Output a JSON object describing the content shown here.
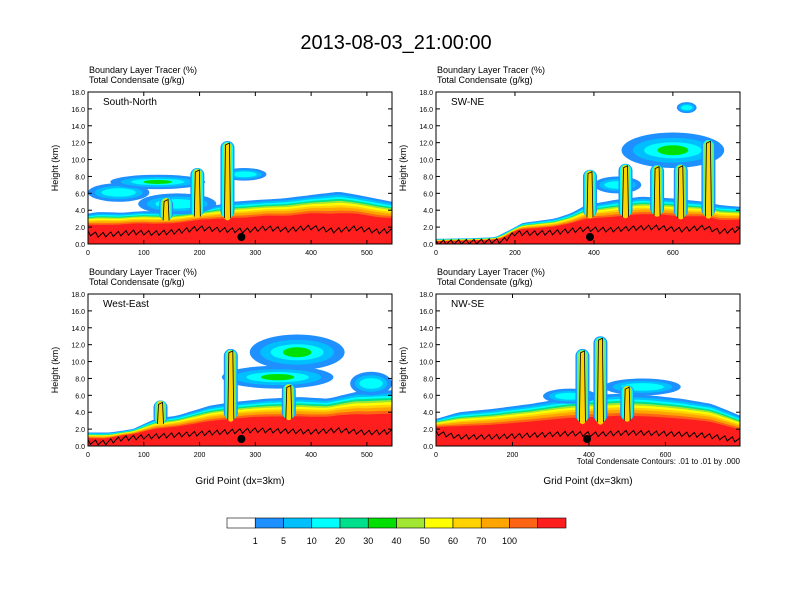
{
  "figure": {
    "title": "2013-08-03_21:00:00",
    "footnote": "Total Condensate Contours: .01 to .01 by .000"
  },
  "colorbar": {
    "labels": [
      "1",
      "5",
      "10",
      "20",
      "30",
      "40",
      "50",
      "60",
      "70",
      "100"
    ],
    "colors": [
      "#ffffff",
      "#1e90ff",
      "#00bfff",
      "#00ffff",
      "#00e08c",
      "#00e000",
      "#a0e632",
      "#ffff00",
      "#ffd200",
      "#ffa500",
      "#ff6414",
      "#ff1e1e"
    ]
  },
  "chart_data": [
    {
      "type": "heatmap",
      "panel_label": "South-North",
      "heading_line1": "Boundary Layer Tracer   (%)",
      "heading_line2": "Total Condensate   (g/kg)",
      "ylabel": "Height (km)",
      "xlabel": "",
      "xlim": [
        0,
        545
      ],
      "ylim": [
        0,
        18
      ],
      "xticks": [
        0,
        100,
        200,
        300,
        400,
        500
      ],
      "yticks": [
        "0.0",
        "2.0",
        "4.0",
        "6.0",
        "8.0",
        "10.0",
        "12.0",
        "14.0",
        "16.0",
        "18.0"
      ],
      "marker_x": 275,
      "top_profile": [
        [
          0,
          3.6
        ],
        [
          20,
          3.8
        ],
        [
          60,
          3.7
        ],
        [
          100,
          3.9
        ],
        [
          150,
          3.8
        ],
        [
          180,
          4.0
        ],
        [
          200,
          4.2
        ],
        [
          230,
          4.6
        ],
        [
          260,
          5.0
        ],
        [
          300,
          5.2
        ],
        [
          350,
          5.4
        ],
        [
          400,
          5.8
        ],
        [
          450,
          6.2
        ],
        [
          500,
          5.6
        ],
        [
          545,
          5.0
        ]
      ],
      "terrain": [
        [
          0,
          1.2
        ],
        [
          20,
          1.0
        ],
        [
          50,
          1.1
        ],
        [
          80,
          1.3
        ],
        [
          120,
          1.2
        ],
        [
          160,
          1.4
        ],
        [
          200,
          1.8
        ],
        [
          240,
          1.6
        ],
        [
          280,
          1.5
        ],
        [
          320,
          1.8
        ],
        [
          360,
          1.6
        ],
        [
          400,
          1.9
        ],
        [
          440,
          1.5
        ],
        [
          480,
          1.8
        ],
        [
          520,
          1.4
        ],
        [
          545,
          1.5
        ]
      ],
      "clouds": [
        {
          "x": [
            0,
            110
          ],
          "y": [
            5.0,
            7.2
          ]
        },
        {
          "x": [
            40,
            210
          ],
          "y": [
            6.5,
            8.2
          ]
        },
        {
          "x": [
            240,
            320
          ],
          "y": [
            7.5,
            9.0
          ]
        },
        {
          "x": [
            90,
            230
          ],
          "y": [
            3.5,
            6.0
          ]
        }
      ],
      "towers": [
        {
          "x": 250,
          "top": 12.2
        },
        {
          "x": 196,
          "top": 9.0
        },
        {
          "x": 140,
          "top": 5.5
        }
      ]
    },
    {
      "type": "heatmap",
      "panel_label": "SW-NE",
      "heading_line1": "Boundary Layer Tracer   (%)",
      "heading_line2": "Total Condensate   (g/kg)",
      "ylabel": "Height (km)",
      "xlabel": "",
      "xlim": [
        0,
        770
      ],
      "ylim": [
        0,
        18
      ],
      "xticks": [
        0,
        200,
        400,
        600
      ],
      "yticks": [
        "0.0",
        "2.0",
        "4.0",
        "6.0",
        "8.0",
        "10.0",
        "12.0",
        "14.0",
        "16.0",
        "18.0"
      ],
      "marker_x": 390,
      "top_profile": [
        [
          0,
          0.6
        ],
        [
          100,
          0.7
        ],
        [
          150,
          0.8
        ],
        [
          180,
          1.5
        ],
        [
          220,
          2.5
        ],
        [
          300,
          3.0
        ],
        [
          340,
          3.6
        ],
        [
          380,
          4.6
        ],
        [
          450,
          5.2
        ],
        [
          520,
          5.6
        ],
        [
          600,
          5.4
        ],
        [
          680,
          5.0
        ],
        [
          720,
          4.6
        ],
        [
          770,
          4.4
        ]
      ],
      "terrain": [
        [
          0,
          0.1
        ],
        [
          100,
          0.2
        ],
        [
          170,
          0.3
        ],
        [
          200,
          1.2
        ],
        [
          250,
          1.2
        ],
        [
          300,
          1.3
        ],
        [
          340,
          1.5
        ],
        [
          380,
          1.7
        ],
        [
          440,
          1.6
        ],
        [
          500,
          1.8
        ],
        [
          560,
          1.9
        ],
        [
          620,
          1.6
        ],
        [
          680,
          1.9
        ],
        [
          720,
          1.4
        ],
        [
          770,
          1.6
        ]
      ],
      "clouds": [
        {
          "x": [
            470,
            730
          ],
          "y": [
            9.0,
            13.2
          ]
        },
        {
          "x": [
            610,
            660
          ],
          "y": [
            15.5,
            16.8
          ]
        },
        {
          "x": [
            400,
            520
          ],
          "y": [
            6.0,
            8.0
          ]
        }
      ],
      "towers": [
        {
          "x": 390,
          "top": 8.8
        },
        {
          "x": 480,
          "top": 9.5
        },
        {
          "x": 560,
          "top": 9.4
        },
        {
          "x": 620,
          "top": 9.5
        },
        {
          "x": 690,
          "top": 12.4
        }
      ]
    },
    {
      "type": "heatmap",
      "panel_label": "West-East",
      "heading_line1": "Boundary Layer Tracer   (%)",
      "heading_line2": "Total Condensate   (g/kg)",
      "ylabel": "Height (km)",
      "xlabel": "Grid Point (dx=3km)",
      "xlim": [
        0,
        545
      ],
      "ylim": [
        0,
        18
      ],
      "xticks": [
        0,
        100,
        200,
        300,
        400,
        500
      ],
      "yticks": [
        "0.0",
        "2.0",
        "4.0",
        "6.0",
        "8.0",
        "10.0",
        "12.0",
        "14.0",
        "16.0",
        "18.0"
      ],
      "marker_x": 275,
      "top_profile": [
        [
          0,
          1.6
        ],
        [
          40,
          1.6
        ],
        [
          80,
          2.0
        ],
        [
          120,
          3.2
        ],
        [
          160,
          3.6
        ],
        [
          220,
          4.8
        ],
        [
          260,
          5.2
        ],
        [
          320,
          5.6
        ],
        [
          380,
          5.8
        ],
        [
          430,
          5.6
        ],
        [
          480,
          6.4
        ],
        [
          545,
          6.6
        ]
      ],
      "terrain": [
        [
          0,
          0.4
        ],
        [
          30,
          0.3
        ],
        [
          60,
          0.8
        ],
        [
          100,
          1.0
        ],
        [
          150,
          1.2
        ],
        [
          200,
          1.4
        ],
        [
          250,
          1.6
        ],
        [
          300,
          1.8
        ],
        [
          350,
          1.7
        ],
        [
          400,
          1.6
        ],
        [
          450,
          1.8
        ],
        [
          500,
          1.5
        ],
        [
          545,
          1.6
        ]
      ],
      "clouds": [
        {
          "x": [
            290,
            460
          ],
          "y": [
            9.0,
            13.2
          ]
        },
        {
          "x": [
            240,
            440
          ],
          "y": [
            6.8,
            9.5
          ]
        },
        {
          "x": [
            470,
            545
          ],
          "y": [
            6.0,
            8.8
          ]
        }
      ],
      "towers": [
        {
          "x": 256,
          "top": 11.5
        },
        {
          "x": 130,
          "top": 5.4
        },
        {
          "x": 360,
          "top": 7.4
        }
      ]
    },
    {
      "type": "heatmap",
      "panel_label": "NW-SE",
      "heading_line1": "Boundary Layer Tracer   (%)",
      "heading_line2": "Total Condensate   (g/kg)",
      "ylabel": "Height (km)",
      "xlabel": "Grid Point (dx=3km)",
      "xlim": [
        0,
        795
      ],
      "ylim": [
        0,
        18
      ],
      "xticks": [
        0,
        200,
        400,
        600
      ],
      "yticks": [
        "0.0",
        "2.0",
        "4.0",
        "6.0",
        "8.0",
        "10.0",
        "12.0",
        "14.0",
        "16.0",
        "18.0"
      ],
      "marker_x": 395,
      "top_profile": [
        [
          0,
          3.2
        ],
        [
          60,
          4.0
        ],
        [
          150,
          4.4
        ],
        [
          250,
          5.0
        ],
        [
          330,
          5.6
        ],
        [
          400,
          6.0
        ],
        [
          480,
          6.2
        ],
        [
          560,
          6.0
        ],
        [
          640,
          5.6
        ],
        [
          720,
          5.0
        ],
        [
          795,
          3.6
        ]
      ],
      "terrain": [
        [
          0,
          1.5
        ],
        [
          60,
          1.0
        ],
        [
          150,
          1.0
        ],
        [
          250,
          1.2
        ],
        [
          350,
          1.4
        ],
        [
          420,
          1.3
        ],
        [
          500,
          1.5
        ],
        [
          600,
          1.4
        ],
        [
          700,
          1.2
        ],
        [
          795,
          0.6
        ]
      ],
      "clouds": [
        {
          "x": [
            440,
            640
          ],
          "y": [
            6.0,
            8.0
          ]
        },
        {
          "x": [
            280,
            420
          ],
          "y": [
            5.0,
            6.8
          ]
        }
      ],
      "towers": [
        {
          "x": 383,
          "top": 11.5
        },
        {
          "x": 430,
          "top": 13.0
        },
        {
          "x": 500,
          "top": 7.2
        }
      ]
    }
  ]
}
